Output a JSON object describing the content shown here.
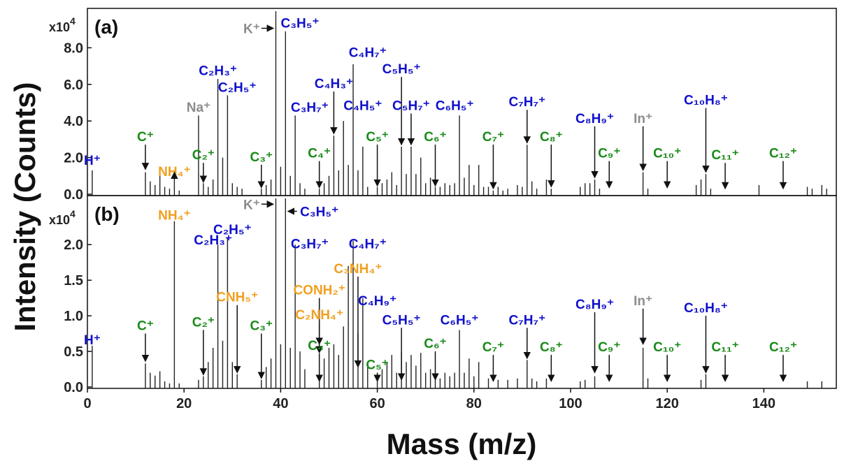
{
  "chart_data": [
    {
      "type": "bar",
      "panel": "(a)",
      "multiplier": "x10",
      "multiplier_exp": "4",
      "xlim": [
        0,
        155
      ],
      "ylim": [
        0,
        10.0
      ],
      "y_ticks": [
        0.0,
        2.0,
        4.0,
        6.0,
        8.0
      ],
      "y_tick_labels": [
        "0.0",
        "2.0",
        "4.0",
        "6.0",
        "8.0"
      ],
      "peaks": [
        [
          1,
          1.3
        ],
        [
          12,
          1.2
        ],
        [
          13,
          0.7
        ],
        [
          14,
          0.5
        ],
        [
          15,
          1.0
        ],
        [
          16,
          0.4
        ],
        [
          17,
          0.3
        ],
        [
          18,
          1.1
        ],
        [
          19,
          0.2
        ],
        [
          23,
          4.3
        ],
        [
          24,
          0.6
        ],
        [
          25,
          0.4
        ],
        [
          26,
          0.8
        ],
        [
          27,
          6.3
        ],
        [
          28,
          2.0
        ],
        [
          29,
          5.4
        ],
        [
          30,
          0.6
        ],
        [
          31,
          0.4
        ],
        [
          32,
          0.3
        ],
        [
          36,
          0.3
        ],
        [
          37,
          0.5
        ],
        [
          38,
          0.8
        ],
        [
          39,
          10.0
        ],
        [
          40,
          1.5
        ],
        [
          41,
          8.9
        ],
        [
          42,
          1.0
        ],
        [
          43,
          4.3
        ],
        [
          44,
          0.6
        ],
        [
          45,
          0.3
        ],
        [
          48,
          0.3
        ],
        [
          49,
          0.6
        ],
        [
          50,
          1.0
        ],
        [
          51,
          3.2
        ],
        [
          52,
          1.3
        ],
        [
          53,
          4.0
        ],
        [
          54,
          1.6
        ],
        [
          55,
          7.1
        ],
        [
          56,
          1.3
        ],
        [
          57,
          2.6
        ],
        [
          58,
          0.4
        ],
        [
          60,
          0.4
        ],
        [
          61,
          0.6
        ],
        [
          62,
          0.8
        ],
        [
          63,
          1.2
        ],
        [
          64,
          0.5
        ],
        [
          65,
          2.6
        ],
        [
          66,
          1.1
        ],
        [
          67,
          2.6
        ],
        [
          68,
          1.1
        ],
        [
          69,
          2.0
        ],
        [
          70,
          0.6
        ],
        [
          71,
          0.9
        ],
        [
          72,
          0.4
        ],
        [
          73,
          0.4
        ],
        [
          74,
          0.6
        ],
        [
          75,
          0.5
        ],
        [
          76,
          0.6
        ],
        [
          77,
          4.3
        ],
        [
          78,
          0.9
        ],
        [
          79,
          1.6
        ],
        [
          80,
          0.5
        ],
        [
          81,
          1.6
        ],
        [
          82,
          0.4
        ],
        [
          83,
          0.4
        ],
        [
          84,
          0.2
        ],
        [
          85,
          0.4
        ],
        [
          86,
          0.2
        ],
        [
          87,
          0.3
        ],
        [
          89,
          0.5
        ],
        [
          90,
          0.4
        ],
        [
          91,
          2.7
        ],
        [
          92,
          0.7
        ],
        [
          93,
          0.3
        ],
        [
          95,
          0.8
        ],
        [
          96,
          0.3
        ],
        [
          102,
          0.4
        ],
        [
          103,
          0.6
        ],
        [
          104,
          0.6
        ],
        [
          105,
          0.8
        ],
        [
          106,
          0.3
        ],
        [
          115,
          1.2
        ],
        [
          116,
          0.3
        ],
        [
          126,
          0.5
        ],
        [
          127,
          0.8
        ],
        [
          128,
          1.1
        ],
        [
          129,
          0.3
        ],
        [
          139,
          0.5
        ],
        [
          149,
          0.4
        ],
        [
          150,
          0.3
        ],
        [
          152,
          0.5
        ],
        [
          153,
          0.3
        ]
      ],
      "labels": [
        {
          "text": "H⁺",
          "color": "blue",
          "x": 1,
          "y": 1.6,
          "arrow": false
        },
        {
          "text": "C⁺",
          "color": "green",
          "x": 12,
          "y": 2.9,
          "arrow": true,
          "tip": 1.35
        },
        {
          "text": "NH₄⁺",
          "color": "orange",
          "x": 18,
          "y": 1.0,
          "arrow": true,
          "tip": 1.2
        },
        {
          "text": "Na⁺",
          "color": "gray",
          "x": 23,
          "y": 4.5,
          "arrow": false
        },
        {
          "text": "C₂⁺",
          "color": "green",
          "x": 24,
          "y": 1.9,
          "arrow": true,
          "tip": 0.65
        },
        {
          "text": "C₂H₃⁺",
          "color": "blue",
          "x": 27,
          "y": 6.5,
          "arrow": false
        },
        {
          "text": "C₂H₅⁺",
          "color": "blue",
          "x": 31,
          "y": 5.6,
          "arrow": false
        },
        {
          "text": "C₃⁺",
          "color": "green",
          "x": 36,
          "y": 1.8,
          "arrow": true,
          "tip": 0.35
        },
        {
          "text": "K⁺",
          "color": "gray",
          "x": 34,
          "y": 8.8,
          "arrow": "right",
          "tip": 38.5
        },
        {
          "text": "C₃H₅⁺",
          "color": "blue",
          "x": 44,
          "y": 9.1,
          "arrow": false
        },
        {
          "text": "C₃H₇⁺",
          "color": "blue",
          "x": 46,
          "y": 4.5,
          "arrow": false
        },
        {
          "text": "C₄H₃⁺",
          "color": "blue",
          "x": 51,
          "y": 5.8,
          "arrow": true,
          "tip": 3.3
        },
        {
          "text": "C₄⁺",
          "color": "green",
          "x": 48,
          "y": 2.0,
          "arrow": true,
          "tip": 0.35
        },
        {
          "text": "C₄H₇⁺",
          "color": "blue",
          "x": 58,
          "y": 7.5,
          "arrow": false
        },
        {
          "text": "C₄H₅⁺",
          "color": "blue",
          "x": 57,
          "y": 4.6,
          "arrow": false
        },
        {
          "text": "C₅⁺",
          "color": "green",
          "x": 60,
          "y": 2.9,
          "arrow": true,
          "tip": 0.45
        },
        {
          "text": "C₅H₅⁺",
          "color": "blue",
          "x": 65,
          "y": 6.6,
          "arrow": true,
          "tip": 2.7
        },
        {
          "text": "C₅H₇⁺",
          "color": "blue",
          "x": 67,
          "y": 4.6,
          "arrow": true,
          "tip": 2.7
        },
        {
          "text": "C₆⁺",
          "color": "green",
          "x": 72,
          "y": 2.9,
          "arrow": true,
          "tip": 0.45
        },
        {
          "text": "C₆H₅⁺",
          "color": "blue",
          "x": 76,
          "y": 4.6,
          "arrow": false
        },
        {
          "text": "C₇⁺",
          "color": "green",
          "x": 84,
          "y": 2.9,
          "arrow": true,
          "tip": 0.3
        },
        {
          "text": "C₇H₇⁺",
          "color": "blue",
          "x": 91,
          "y": 4.8,
          "arrow": true,
          "tip": 2.8
        },
        {
          "text": "C₈⁺",
          "color": "green",
          "x": 96,
          "y": 2.9,
          "arrow": true,
          "tip": 0.4
        },
        {
          "text": "C₈H₉⁺",
          "color": "blue",
          "x": 105,
          "y": 3.9,
          "arrow": true,
          "tip": 0.9
        },
        {
          "text": "In⁺",
          "color": "gray",
          "x": 115,
          "y": 3.9,
          "arrow": true,
          "tip": 1.3
        },
        {
          "text": "C₉⁺",
          "color": "green",
          "x": 108,
          "y": 2.0,
          "arrow": true,
          "tip": 0.35
        },
        {
          "text": "C₁₀⁺",
          "color": "green",
          "x": 120,
          "y": 2.0,
          "arrow": true,
          "tip": 0.35
        },
        {
          "text": "C₁₀H₈⁺",
          "color": "blue",
          "x": 128,
          "y": 4.9,
          "arrow": true,
          "tip": 1.2
        },
        {
          "text": "C₁₁⁺",
          "color": "green",
          "x": 132,
          "y": 1.9,
          "arrow": true,
          "tip": 0.3
        },
        {
          "text": "C₁₂⁺",
          "color": "green",
          "x": 144,
          "y": 2.0,
          "arrow": true,
          "tip": 0.3
        }
      ]
    },
    {
      "type": "bar",
      "panel": "(b)",
      "multiplier": "x10",
      "multiplier_exp": "4",
      "xlim": [
        0,
        155
      ],
      "ylim": [
        0,
        2.65
      ],
      "y_ticks": [
        0.0,
        0.5,
        1.0,
        1.5,
        2.0
      ],
      "y_tick_labels": [
        "0.0",
        "0.5",
        "1.0",
        "1.5",
        "2.0"
      ],
      "x_ticks": [
        0,
        20,
        40,
        60,
        80,
        100,
        120,
        140
      ],
      "x_tick_labels": [
        "0",
        "20",
        "40",
        "60",
        "80",
        "100",
        "120",
        "140"
      ],
      "peaks": [
        [
          1,
          0.58
        ],
        [
          12,
          0.33
        ],
        [
          13,
          0.2
        ],
        [
          14,
          0.16
        ],
        [
          15,
          0.22
        ],
        [
          16,
          0.08
        ],
        [
          17,
          0.05
        ],
        [
          18,
          2.33
        ],
        [
          19,
          0.05
        ],
        [
          23,
          0.1
        ],
        [
          24,
          0.15
        ],
        [
          25,
          0.35
        ],
        [
          26,
          0.55
        ],
        [
          27,
          2.0
        ],
        [
          28,
          0.65
        ],
        [
          29,
          2.1
        ],
        [
          30,
          0.35
        ],
        [
          31,
          0.18
        ],
        [
          36,
          0.1
        ],
        [
          37,
          0.28
        ],
        [
          38,
          0.4
        ],
        [
          39,
          2.65
        ],
        [
          40,
          0.6
        ],
        [
          41,
          2.65
        ],
        [
          42,
          0.55
        ],
        [
          43,
          2.0
        ],
        [
          44,
          0.5
        ],
        [
          45,
          0.25
        ],
        [
          48,
          0.2
        ],
        [
          49,
          0.4
        ],
        [
          50,
          0.55
        ],
        [
          51,
          0.6
        ],
        [
          52,
          0.45
        ],
        [
          53,
          0.85
        ],
        [
          54,
          1.7
        ],
        [
          55,
          2.05
        ],
        [
          56,
          0.75
        ],
        [
          57,
          1.25
        ],
        [
          58,
          0.3
        ],
        [
          60,
          0.15
        ],
        [
          61,
          0.25
        ],
        [
          62,
          0.35
        ],
        [
          63,
          0.45
        ],
        [
          64,
          0.2
        ],
        [
          65,
          0.5
        ],
        [
          66,
          0.35
        ],
        [
          67,
          0.45
        ],
        [
          68,
          0.3
        ],
        [
          69,
          0.48
        ],
        [
          70,
          0.2
        ],
        [
          71,
          0.25
        ],
        [
          72,
          0.15
        ],
        [
          73,
          0.12
        ],
        [
          74,
          0.2
        ],
        [
          75,
          0.15
        ],
        [
          76,
          0.2
        ],
        [
          77,
          0.8
        ],
        [
          78,
          0.2
        ],
        [
          79,
          0.4
        ],
        [
          80,
          0.15
        ],
        [
          81,
          0.35
        ],
        [
          83,
          0.12
        ],
        [
          85,
          0.1
        ],
        [
          87,
          0.1
        ],
        [
          89,
          0.12
        ],
        [
          91,
          0.38
        ],
        [
          92,
          0.12
        ],
        [
          93,
          0.08
        ],
        [
          95,
          0.12
        ],
        [
          102,
          0.08
        ],
        [
          103,
          0.1
        ],
        [
          105,
          0.15
        ],
        [
          115,
          0.55
        ],
        [
          116,
          0.12
        ],
        [
          127,
          0.1
        ],
        [
          128,
          0.18
        ],
        [
          149,
          0.08
        ],
        [
          152,
          0.08
        ]
      ],
      "labels": [
        {
          "text": "H⁺",
          "color": "blue",
          "x": 1,
          "y": 0.6,
          "arrow": false
        },
        {
          "text": "C⁺",
          "color": "green",
          "x": 12,
          "y": 0.8,
          "arrow": true,
          "tip": 0.36
        },
        {
          "text": "NH₄⁺",
          "color": "orange",
          "x": 18,
          "y": 2.35,
          "arrow": false
        },
        {
          "text": "C₂⁺",
          "color": "green",
          "x": 24,
          "y": 0.85,
          "arrow": true,
          "tip": 0.17
        },
        {
          "text": "C₂H₃⁺",
          "color": "blue",
          "x": 26,
          "y": 2.0,
          "arrow": false
        },
        {
          "text": "C₂H₅⁺",
          "color": "blue",
          "x": 30,
          "y": 2.15,
          "arrow": false
        },
        {
          "text": "CNH₅⁺",
          "color": "orange",
          "x": 31,
          "y": 1.2,
          "arrow": true,
          "tip": 0.2
        },
        {
          "text": "C₃⁺",
          "color": "green",
          "x": 36,
          "y": 0.8,
          "arrow": true,
          "tip": 0.12
        },
        {
          "text": "K⁺",
          "color": "gray",
          "x": 34,
          "y": 2.5,
          "arrow": "right",
          "tip": 38.5
        },
        {
          "text": "C₃H₅⁺",
          "color": "blue",
          "x": 48,
          "y": 2.4,
          "arrow": "left",
          "tip": 41.5
        },
        {
          "text": "C₃H₇⁺",
          "color": "blue",
          "x": 46,
          "y": 1.95,
          "arrow": false
        },
        {
          "text": "CONH₂⁺",
          "color": "orange",
          "x": 48,
          "y": 1.3,
          "arrow": true,
          "tip": 0.6
        },
        {
          "text": "C₂NH₄⁺",
          "color": "orange",
          "x": 48,
          "y": 0.95,
          "arrow": true,
          "tip": 0.48
        },
        {
          "text": "C₄⁺",
          "color": "green",
          "x": 48,
          "y": 0.52,
          "arrow": true,
          "tip": 0.08
        },
        {
          "text": "C₄H₇⁺",
          "color": "blue",
          "x": 58,
          "y": 1.95,
          "arrow": false
        },
        {
          "text": "C₃NH₄⁺",
          "color": "orange",
          "x": 56,
          "y": 1.6,
          "arrow": true,
          "tip": 0.28
        },
        {
          "text": "C₄H₉⁺",
          "color": "blue",
          "x": 60,
          "y": 1.15,
          "arrow": false
        },
        {
          "text": "C₅⁺",
          "color": "green",
          "x": 60,
          "y": 0.25,
          "arrow": true,
          "tip": 0.08
        },
        {
          "text": "C₅H₅⁺",
          "color": "blue",
          "x": 65,
          "y": 0.88,
          "arrow": true,
          "tip": 0.1
        },
        {
          "text": "C₆⁺",
          "color": "green",
          "x": 72,
          "y": 0.55,
          "arrow": true,
          "tip": 0.1
        },
        {
          "text": "C₆H₅⁺",
          "color": "blue",
          "x": 77,
          "y": 0.88,
          "arrow": false
        },
        {
          "text": "C₇⁺",
          "color": "green",
          "x": 84,
          "y": 0.5,
          "arrow": true,
          "tip": 0.08
        },
        {
          "text": "C₇H₇⁺",
          "color": "blue",
          "x": 91,
          "y": 0.88,
          "arrow": true,
          "tip": 0.4
        },
        {
          "text": "C₈⁺",
          "color": "green",
          "x": 96,
          "y": 0.5,
          "arrow": true,
          "tip": 0.08
        },
        {
          "text": "C₈H₉⁺",
          "color": "blue",
          "x": 105,
          "y": 1.1,
          "arrow": true,
          "tip": 0.2
        },
        {
          "text": "In⁺",
          "color": "gray",
          "x": 115,
          "y": 1.15,
          "arrow": true,
          "tip": 0.6
        },
        {
          "text": "C₉⁺",
          "color": "green",
          "x": 108,
          "y": 0.5,
          "arrow": true,
          "tip": 0.08
        },
        {
          "text": "C₁₀⁺",
          "color": "green",
          "x": 120,
          "y": 0.5,
          "arrow": true,
          "tip": 0.08
        },
        {
          "text": "C₁₀H₈⁺",
          "color": "blue",
          "x": 128,
          "y": 1.05,
          "arrow": true,
          "tip": 0.2
        },
        {
          "text": "C₁₁⁺",
          "color": "green",
          "x": 132,
          "y": 0.5,
          "arrow": true,
          "tip": 0.08
        },
        {
          "text": "C₁₂⁺",
          "color": "green",
          "x": 144,
          "y": 0.5,
          "arrow": true,
          "tip": 0.08
        }
      ]
    }
  ],
  "axes": {
    "ylabel": "Intensity (Counts)",
    "xlabel": "Mass (m/z)"
  },
  "colors": {
    "blue": "#1010cc",
    "green": "#1a8a1a",
    "orange": "#f0a020",
    "gray": "#8c8c8c",
    "peak": "#222222"
  }
}
